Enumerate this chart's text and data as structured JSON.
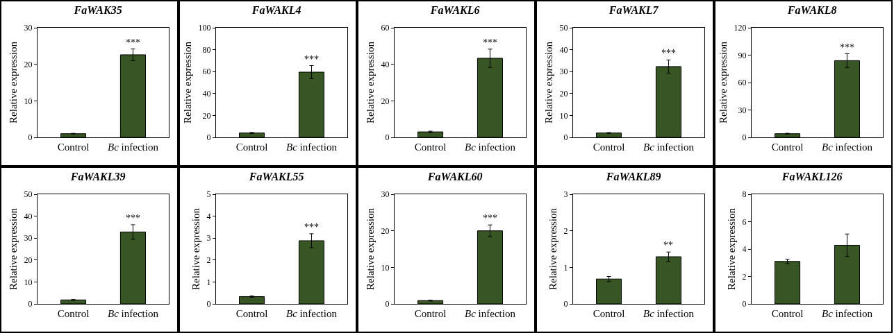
{
  "chart_data": [
    {
      "type": "bar",
      "title": "FaWAK35",
      "ylabel": "Relative expression",
      "categories": [
        "Control",
        "Bc infection"
      ],
      "values": [
        1.0,
        22.6
      ],
      "errors": [
        0.1,
        1.6
      ],
      "color": "#375623",
      "ylim": [
        0,
        30
      ],
      "yticks": [
        0,
        10,
        20,
        30
      ],
      "grid": false,
      "annotations": [
        {
          "text": "***",
          "x": "Bc infection",
          "y": 24.2
        }
      ]
    },
    {
      "type": "bar",
      "title": "FaWAKL4",
      "ylabel": "Relative expression",
      "categories": [
        "Control",
        "Bc infection"
      ],
      "values": [
        4,
        59.5
      ],
      "errors": [
        0.5,
        6
      ],
      "color": "#375623",
      "ylim": [
        0,
        100
      ],
      "yticks": [
        0,
        20,
        40,
        60,
        80,
        100
      ],
      "grid": false,
      "annotations": [
        {
          "text": "***",
          "x": "Bc infection",
          "y": 65.5
        }
      ]
    },
    {
      "type": "bar",
      "title": "FaWAKL6",
      "ylabel": "Relative expression",
      "categories": [
        "Control",
        "Bc infection"
      ],
      "values": [
        3,
        43.3
      ],
      "errors": [
        0.4,
        5
      ],
      "color": "#375623",
      "ylim": [
        0,
        60
      ],
      "yticks": [
        0,
        20,
        40,
        60
      ],
      "grid": false,
      "annotations": [
        {
          "text": "***",
          "x": "Bc infection",
          "y": 48.3
        }
      ]
    },
    {
      "type": "bar",
      "title": "FaWAKL7",
      "ylabel": "Relative expression",
      "categories": [
        "Control",
        "Bc infection"
      ],
      "values": [
        2,
        32.3
      ],
      "errors": [
        0.2,
        3
      ],
      "color": "#375623",
      "ylim": [
        0,
        50
      ],
      "yticks": [
        0,
        10,
        20,
        30,
        40,
        50
      ],
      "grid": false,
      "annotations": [
        {
          "text": "***",
          "x": "Bc infection",
          "y": 35.3
        }
      ]
    },
    {
      "type": "bar",
      "title": "FaWAKL8",
      "ylabel": "Relative expression",
      "categories": [
        "Control",
        "Bc infection"
      ],
      "values": [
        4,
        84
      ],
      "errors": [
        0.5,
        7.5
      ],
      "color": "#375623",
      "ylim": [
        0,
        120
      ],
      "yticks": [
        0,
        30,
        60,
        90,
        120
      ],
      "grid": false,
      "annotations": [
        {
          "text": "***",
          "x": "Bc infection",
          "y": 91.5
        }
      ]
    },
    {
      "type": "bar",
      "title": "FaWAKL39",
      "ylabel": "Relative expression",
      "categories": [
        "Control",
        "Bc infection"
      ],
      "values": [
        1.8,
        32.8
      ],
      "errors": [
        0.2,
        3.3
      ],
      "color": "#375623",
      "ylim": [
        0,
        50
      ],
      "yticks": [
        0,
        10,
        20,
        30,
        40,
        50
      ],
      "grid": false,
      "annotations": [
        {
          "text": "***",
          "x": "Bc infection",
          "y": 36.1
        }
      ]
    },
    {
      "type": "bar",
      "title": "FaWAKL55",
      "ylabel": "Relative expression",
      "categories": [
        "Control",
        "Bc infection"
      ],
      "values": [
        0.33,
        2.88
      ],
      "errors": [
        0.03,
        0.32
      ],
      "color": "#375623",
      "ylim": [
        0,
        5
      ],
      "yticks": [
        0,
        1,
        2,
        3,
        4,
        5
      ],
      "grid": false,
      "annotations": [
        {
          "text": "***",
          "x": "Bc infection",
          "y": 3.2
        }
      ]
    },
    {
      "type": "bar",
      "title": "FaWAKL60",
      "ylabel": "Relative expression",
      "categories": [
        "Control",
        "Bc infection"
      ],
      "values": [
        0.9,
        20
      ],
      "errors": [
        0.1,
        1.6
      ],
      "color": "#375623",
      "ylim": [
        0,
        30
      ],
      "yticks": [
        0,
        10,
        20,
        30
      ],
      "grid": false,
      "annotations": [
        {
          "text": "***",
          "x": "Bc infection",
          "y": 21.6
        }
      ]
    },
    {
      "type": "bar",
      "title": "FaWAKL89",
      "ylabel": "Relative expression",
      "categories": [
        "Control",
        "Bc infection"
      ],
      "values": [
        0.68,
        1.29
      ],
      "errors": [
        0.07,
        0.13
      ],
      "color": "#375623",
      "ylim": [
        0,
        3
      ],
      "yticks": [
        0,
        1,
        2,
        3
      ],
      "grid": false,
      "annotations": [
        {
          "text": "**",
          "x": "Bc infection",
          "y": 1.42
        }
      ]
    },
    {
      "type": "bar",
      "title": "FaWAKL126",
      "ylabel": "Relative expression",
      "categories": [
        "Control",
        "Bc infection"
      ],
      "values": [
        3.1,
        4.28
      ],
      "errors": [
        0.15,
        0.82
      ],
      "color": "#375623",
      "ylim": [
        0,
        8
      ],
      "yticks": [
        0,
        2,
        4,
        6,
        8
      ],
      "grid": false
    }
  ]
}
